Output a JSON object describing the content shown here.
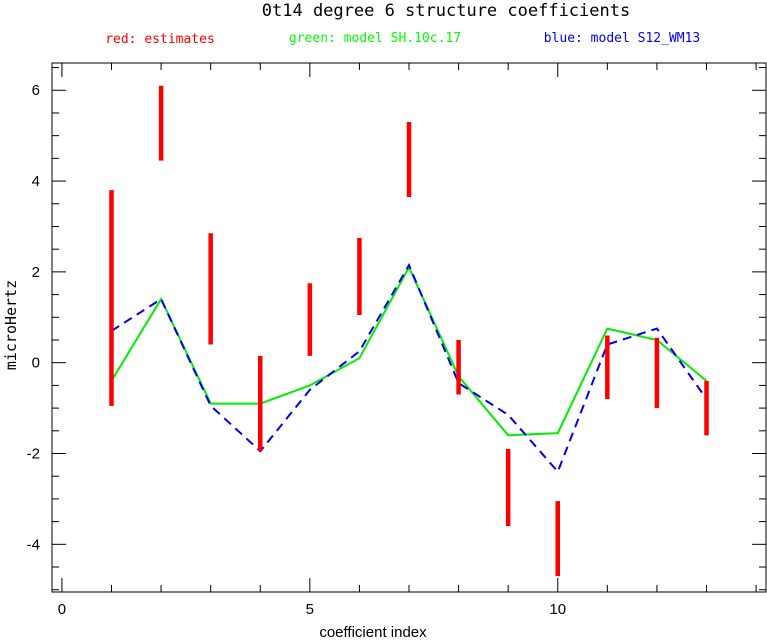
{
  "chart_data": {
    "type": "line",
    "title": "0t14 degree 6 structure coefficients",
    "legend": [
      {
        "text": "red: estimates",
        "color": "#ff0000"
      },
      {
        "text": "green: model SH.10c.17",
        "color": "#00ff00"
      },
      {
        "text": "blue: model S12_WM13",
        "color": "#0000ff"
      }
    ],
    "xlabel": "coefficient index",
    "ylabel": "microHertz",
    "xlim": [
      -0.2,
      14.2
    ],
    "ylim": [
      -5.05,
      6.6
    ],
    "x_ticks": [
      0,
      5,
      10
    ],
    "y_ticks": [
      -4,
      -2,
      0,
      2,
      4,
      6
    ],
    "x_minor_step": 1,
    "y_minor_step": 0.5,
    "error_bars": {
      "name": "estimates",
      "color": "#ff0000",
      "x": [
        1,
        2,
        3,
        4,
        5,
        6,
        7,
        8,
        9,
        10,
        11,
        12,
        13
      ],
      "low": [
        -0.95,
        4.45,
        0.4,
        -1.95,
        0.15,
        1.05,
        3.65,
        -0.7,
        -3.6,
        -4.7,
        -0.8,
        -1.0,
        -1.6
      ],
      "high": [
        3.8,
        6.1,
        2.85,
        0.15,
        1.75,
        2.75,
        5.3,
        0.5,
        -1.9,
        -3.05,
        0.6,
        0.55,
        -0.4
      ]
    },
    "series": [
      {
        "name": "model SH.10c.17",
        "color": "#00ee00",
        "style": "solid",
        "x": [
          1,
          2,
          3,
          4,
          5,
          6,
          7,
          8,
          9,
          10,
          11,
          12,
          13
        ],
        "values": [
          -0.4,
          1.4,
          -0.9,
          -0.9,
          -0.5,
          0.1,
          2.1,
          -0.3,
          -1.6,
          -1.55,
          0.75,
          0.5,
          -0.4
        ]
      },
      {
        "name": "model S12_WM13",
        "color": "#0000ee",
        "style": "dashed",
        "x": [
          1,
          2,
          3,
          4,
          5,
          6,
          7,
          8,
          9,
          10,
          11,
          12,
          13
        ],
        "values": [
          0.7,
          1.4,
          -0.95,
          -1.95,
          -0.6,
          0.25,
          2.15,
          -0.45,
          -1.15,
          -2.4,
          0.4,
          0.75,
          -0.8
        ]
      }
    ]
  }
}
